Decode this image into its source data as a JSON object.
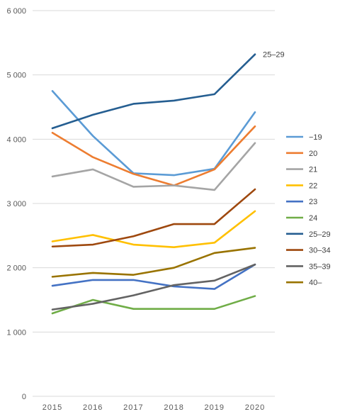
{
  "chart_data": {
    "type": "line",
    "title": "",
    "xlabel": "",
    "ylabel": "",
    "x": [
      "2015",
      "2016",
      "2017",
      "2018",
      "2019",
      "2020"
    ],
    "ylim": [
      0,
      6000
    ],
    "y_ticks": [
      0,
      1000,
      2000,
      3000,
      4000,
      5000,
      6000
    ],
    "y_tick_labels": [
      "0",
      "1 000",
      "2 000",
      "3 000",
      "4 000",
      "5 000",
      "6 000"
    ],
    "grid": true,
    "legend": "right",
    "series": [
      {
        "name": "−19",
        "color": "#5b9bd5",
        "values": [
          4750,
          4050,
          3470,
          3440,
          3540,
          4420
        ]
      },
      {
        "name": "20",
        "color": "#ed7d31",
        "values": [
          4100,
          3720,
          3460,
          3280,
          3530,
          4200
        ]
      },
      {
        "name": "21",
        "color": "#a5a5a5",
        "values": [
          3420,
          3530,
          3260,
          3280,
          3210,
          3940
        ]
      },
      {
        "name": "22",
        "color": "#ffc000",
        "values": [
          2410,
          2510,
          2360,
          2320,
          2390,
          2880
        ]
      },
      {
        "name": "23",
        "color": "#4472c4",
        "values": [
          1720,
          1810,
          1810,
          1710,
          1670,
          2050
        ]
      },
      {
        "name": "24",
        "color": "#70ad47",
        "values": [
          1290,
          1500,
          1360,
          1360,
          1360,
          1560
        ]
      },
      {
        "name": "25–29",
        "color": "#255e91",
        "values": [
          4170,
          4380,
          4550,
          4600,
          4700,
          5320
        ]
      },
      {
        "name": "30–34",
        "color": "#9e480e",
        "values": [
          2330,
          2360,
          2490,
          2680,
          2680,
          3220
        ]
      },
      {
        "name": "35–39",
        "color": "#636363",
        "values": [
          1350,
          1440,
          1570,
          1730,
          1800,
          2050
        ]
      },
      {
        "name": "40–",
        "color": "#997300",
        "values": [
          1860,
          1920,
          1890,
          2000,
          2230,
          2310
        ]
      }
    ],
    "annotations": [
      {
        "text": "25–29",
        "series": "25–29",
        "x": "2020"
      }
    ]
  }
}
